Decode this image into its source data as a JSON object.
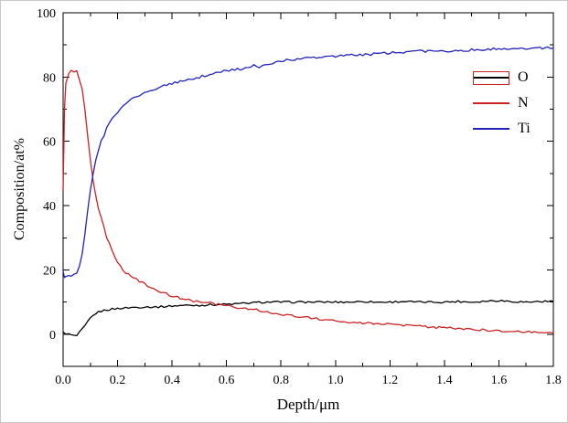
{
  "chart_data": {
    "type": "line",
    "title": "",
    "xlabel": "Depth/μm",
    "ylabel": "Composition/at%",
    "xlim": [
      0,
      1.8
    ],
    "ylim": [
      -10,
      100
    ],
    "grid": false,
    "x_major_ticks": [
      0,
      0.2,
      0.4,
      0.6,
      0.8,
      1.0,
      1.2,
      1.4,
      1.6,
      1.8
    ],
    "x_minor_ticks": [
      0.1,
      0.3,
      0.5,
      0.7,
      0.9,
      1.1,
      1.3,
      1.5,
      1.7
    ],
    "y_major_ticks": [
      0,
      20,
      40,
      60,
      80,
      100
    ],
    "y_minor_ticks": [
      10,
      30,
      50,
      70,
      90
    ],
    "x_tick_labels": [
      "0.0",
      "0.2",
      "0.4",
      "0.6",
      "0.8",
      "1.0",
      "1.2",
      "1.4",
      "1.6",
      "1.8"
    ],
    "y_tick_labels": [
      "0",
      "20",
      "40",
      "60",
      "80",
      "100"
    ],
    "legend": {
      "position": "upper-right",
      "box_color": "#cc2222"
    },
    "series": [
      {
        "name": "O",
        "color": "#000000",
        "noise": 0.3,
        "x": [
          0,
          0.02,
          0.04,
          0.05,
          0.06,
          0.08,
          0.1,
          0.12,
          0.14,
          0.16,
          0.18,
          0.2,
          0.25,
          0.3,
          0.35,
          0.4,
          0.45,
          0.5,
          0.55,
          0.6,
          0.65,
          0.7,
          0.75,
          0.8,
          0.85,
          0.9,
          0.95,
          1.0,
          1.05,
          1.1,
          1.15,
          1.2,
          1.25,
          1.3,
          1.35,
          1.4,
          1.45,
          1.5,
          1.55,
          1.6,
          1.65,
          1.7,
          1.75,
          1.8
        ],
        "y": [
          0.5,
          0,
          -0.5,
          -0.5,
          0.5,
          2.5,
          5,
          6.5,
          7.2,
          7.6,
          7.8,
          8,
          8.3,
          8.5,
          8.5,
          8.8,
          9,
          9,
          9.2,
          9.3,
          9.5,
          9.8,
          10,
          10,
          10,
          10,
          10,
          10,
          10,
          10.2,
          10,
          10,
          10.2,
          10,
          10,
          10,
          10.2,
          10,
          10.3,
          10.5,
          10.2,
          10,
          10.2,
          10.2
        ]
      },
      {
        "name": "N",
        "color": "#cc2222",
        "noise": 0.35,
        "x": [
          0,
          0.005,
          0.01,
          0.02,
          0.03,
          0.04,
          0.05,
          0.06,
          0.07,
          0.08,
          0.09,
          0.1,
          0.11,
          0.12,
          0.13,
          0.14,
          0.15,
          0.16,
          0.17,
          0.18,
          0.19,
          0.2,
          0.22,
          0.24,
          0.26,
          0.28,
          0.3,
          0.32,
          0.34,
          0.36,
          0.38,
          0.4,
          0.42,
          0.44,
          0.46,
          0.48,
          0.5,
          0.55,
          0.6,
          0.65,
          0.7,
          0.75,
          0.8,
          0.85,
          0.9,
          0.95,
          1.0,
          1.05,
          1.1,
          1.15,
          1.2,
          1.25,
          1.3,
          1.35,
          1.4,
          1.45,
          1.5,
          1.55,
          1.6,
          1.65,
          1.7,
          1.75,
          1.8
        ],
        "y": [
          45,
          70,
          78,
          81,
          82,
          81.5,
          82,
          79,
          76,
          70,
          62,
          54,
          48,
          43,
          39,
          36,
          33,
          30,
          28,
          26,
          24,
          22.5,
          20,
          18.5,
          17.5,
          16.5,
          15.5,
          14.5,
          13.5,
          13,
          12.5,
          12,
          11.5,
          11,
          10.8,
          10.3,
          10,
          9.5,
          8.8,
          8.2,
          7.8,
          6.8,
          6.2,
          5.6,
          5.2,
          4.6,
          4.2,
          3.8,
          3.5,
          3.2,
          3.0,
          2.8,
          2.5,
          2.2,
          2.0,
          1.8,
          1.5,
          1.3,
          1.1,
          0.9,
          0.8,
          0.6,
          0.5
        ]
      },
      {
        "name": "Ti",
        "color": "#2222bb",
        "noise": 0.4,
        "x": [
          0,
          0.005,
          0.01,
          0.02,
          0.03,
          0.04,
          0.05,
          0.06,
          0.07,
          0.08,
          0.09,
          0.1,
          0.11,
          0.12,
          0.13,
          0.14,
          0.15,
          0.16,
          0.17,
          0.18,
          0.19,
          0.2,
          0.22,
          0.24,
          0.26,
          0.28,
          0.3,
          0.32,
          0.34,
          0.36,
          0.38,
          0.4,
          0.45,
          0.5,
          0.55,
          0.6,
          0.65,
          0.7,
          0.72,
          0.75,
          0.8,
          0.85,
          0.9,
          0.95,
          1.0,
          1.05,
          1.1,
          1.15,
          1.2,
          1.25,
          1.3,
          1.35,
          1.4,
          1.45,
          1.5,
          1.55,
          1.6,
          1.65,
          1.7,
          1.75,
          1.8
        ],
        "y": [
          20,
          17.5,
          18,
          18.5,
          18,
          18.5,
          19,
          21,
          25,
          31,
          38,
          45,
          50,
          54,
          57,
          60,
          62,
          64,
          65.5,
          67,
          68,
          69,
          71,
          72.5,
          73.5,
          74.5,
          75,
          75.5,
          76.5,
          77,
          77.5,
          78,
          79,
          80,
          81,
          82,
          82.5,
          83.5,
          82.8,
          84,
          85,
          85.5,
          86,
          86.3,
          86.5,
          86.8,
          87,
          87.2,
          87.5,
          87.8,
          88,
          88,
          88.2,
          88.3,
          88.5,
          88.5,
          88.8,
          89,
          88.8,
          89,
          89
        ]
      }
    ]
  }
}
